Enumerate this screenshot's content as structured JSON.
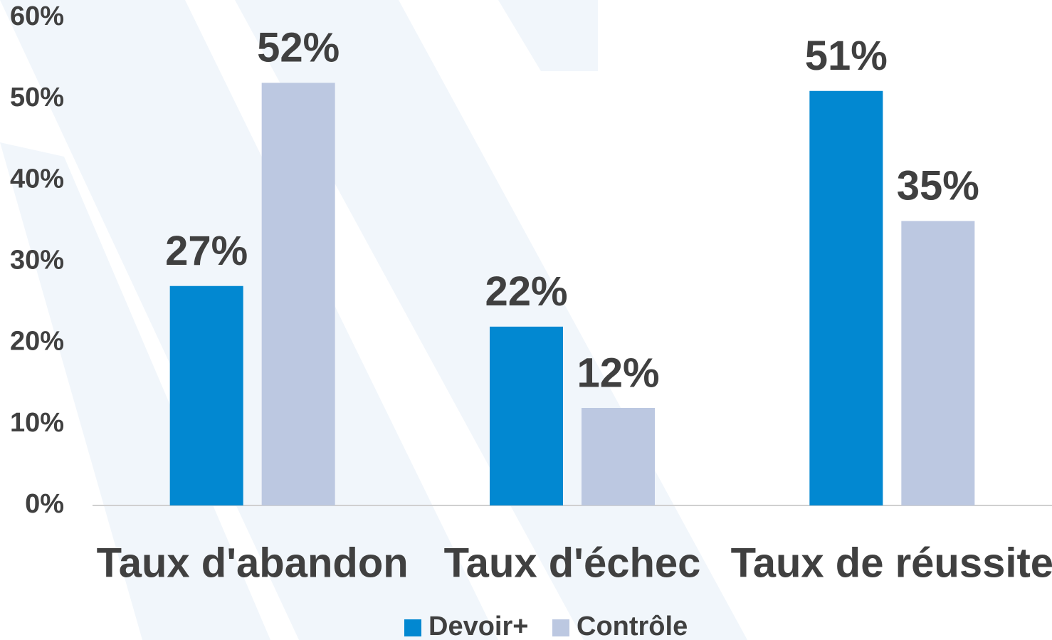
{
  "chart_data": {
    "type": "bar",
    "categories": [
      "Taux d'abandon",
      "Taux d'échec",
      "Taux de réussite"
    ],
    "series": [
      {
        "name": "Devoir+",
        "color": "#0288d1",
        "values": [
          27,
          22,
          51
        ],
        "value_labels": [
          "27%",
          "22%",
          "51%"
        ]
      },
      {
        "name": "Contrôle",
        "color": "#bcc8e1",
        "values": [
          52,
          12,
          35
        ],
        "value_labels": [
          "52%",
          "12%",
          "35%"
        ]
      }
    ],
    "ylim": [
      0,
      60
    ],
    "yticks": [
      {
        "value": 0,
        "label": "0%"
      },
      {
        "value": 10,
        "label": "10%"
      },
      {
        "value": 20,
        "label": "20%"
      },
      {
        "value": 30,
        "label": "30%"
      },
      {
        "value": 40,
        "label": "40%"
      },
      {
        "value": 50,
        "label": "50%"
      },
      {
        "value": 60,
        "label": "60%"
      }
    ],
    "legend": "bottom"
  }
}
